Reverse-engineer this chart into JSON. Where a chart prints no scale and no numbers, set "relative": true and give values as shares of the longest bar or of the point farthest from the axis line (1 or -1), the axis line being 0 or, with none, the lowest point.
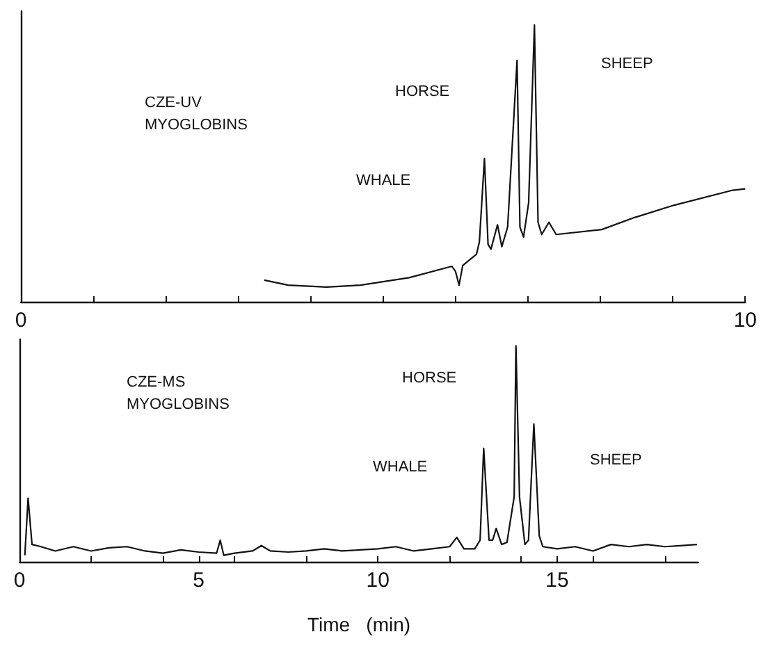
{
  "chart_data": [
    {
      "type": "line",
      "relative": true,
      "color": "#111111",
      "marker": "none",
      "line_style": "solid",
      "grid": false,
      "tick_labels": "x",
      "annotations": [
        "CZE-UV\nMYOGLOBINS",
        "HORSE",
        "WHALE",
        "SHEEP"
      ],
      "xlim": [
        0,
        10
      ],
      "xticks": [
        0,
        {
          "value": 1,
          "label": null
        },
        {
          "value": 2,
          "label": null
        },
        {
          "value": 3,
          "label": null
        },
        {
          "value": 4,
          "label": null
        },
        {
          "value": 5,
          "label": null
        },
        {
          "value": 6,
          "label": null
        },
        {
          "value": 7,
          "label": null
        },
        {
          "value": 8,
          "label": null
        },
        {
          "value": 9,
          "label": null
        },
        10
      ],
      "x": [
        3.36,
        3.69,
        4.22,
        4.69,
        5.36,
        5.95,
        6.0,
        6.05,
        6.1,
        6.29,
        6.33,
        6.4,
        6.45,
        6.49,
        6.58,
        6.64,
        6.72,
        6.85,
        6.89,
        6.94,
        7.01,
        7.09,
        7.14,
        7.19,
        7.29,
        7.39,
        8.02,
        8.48,
        9.02,
        9.81,
        10.0
      ],
      "values": [
        0.078,
        0.06,
        0.053,
        0.06,
        0.087,
        0.128,
        0.11,
        0.06,
        0.131,
        0.172,
        0.216,
        0.518,
        0.207,
        0.19,
        0.278,
        0.199,
        0.27,
        0.872,
        0.27,
        0.234,
        0.358,
        1.0,
        0.287,
        0.243,
        0.287,
        0.243,
        0.261,
        0.305,
        0.349,
        0.402,
        0.408
      ]
    },
    {
      "type": "line",
      "relative": true,
      "color": "#111111",
      "marker": "none",
      "line_style": "solid",
      "grid": false,
      "tick_labels": "x",
      "xlabel": "Time   (min)",
      "annotations": [
        "CZE-MS\nMYOGLOBINS",
        "HORSE",
        "WHALE",
        "SHEEP"
      ],
      "xlim": [
        0,
        18.94
      ],
      "xticks": [
        0,
        {
          "value": 2,
          "label": null
        },
        {
          "value": 4,
          "label": null
        },
        5,
        {
          "value": 6,
          "label": null
        },
        {
          "value": 8,
          "label": null
        },
        10,
        {
          "value": 12,
          "label": null
        },
        {
          "value": 14,
          "label": null
        },
        15,
        {
          "value": 16,
          "label": null
        },
        {
          "value": 18,
          "label": null
        }
      ],
      "x": [
        0.15,
        0.24,
        0.35,
        0.6,
        1.0,
        1.5,
        2.0,
        2.5,
        3.0,
        3.5,
        4.0,
        4.5,
        5.0,
        5.5,
        5.6,
        5.7,
        6.0,
        6.5,
        6.75,
        7.0,
        7.5,
        8.0,
        8.5,
        9.0,
        9.5,
        10.0,
        10.5,
        11.0,
        11.5,
        12.0,
        12.2,
        12.4,
        12.7,
        12.85,
        12.95,
        13.1,
        13.2,
        13.3,
        13.45,
        13.6,
        13.8,
        13.85,
        13.95,
        14.1,
        14.2,
        14.35,
        14.5,
        14.6,
        15.0,
        15.5,
        16.0,
        16.5,
        17.0,
        17.5,
        18.0,
        18.5,
        18.9
      ],
      "values": [
        0.03,
        0.294,
        0.08,
        0.07,
        0.05,
        0.07,
        0.05,
        0.065,
        0.07,
        0.05,
        0.04,
        0.055,
        0.045,
        0.04,
        0.1,
        0.03,
        0.04,
        0.05,
        0.075,
        0.05,
        0.045,
        0.05,
        0.06,
        0.05,
        0.055,
        0.06,
        0.07,
        0.05,
        0.06,
        0.07,
        0.113,
        0.06,
        0.06,
        0.1,
        0.525,
        0.1,
        0.1,
        0.154,
        0.08,
        0.09,
        0.3,
        1.0,
        0.3,
        0.08,
        0.1,
        0.638,
        0.12,
        0.07,
        0.06,
        0.07,
        0.05,
        0.08,
        0.07,
        0.08,
        0.07,
        0.075,
        0.08
      ]
    }
  ]
}
